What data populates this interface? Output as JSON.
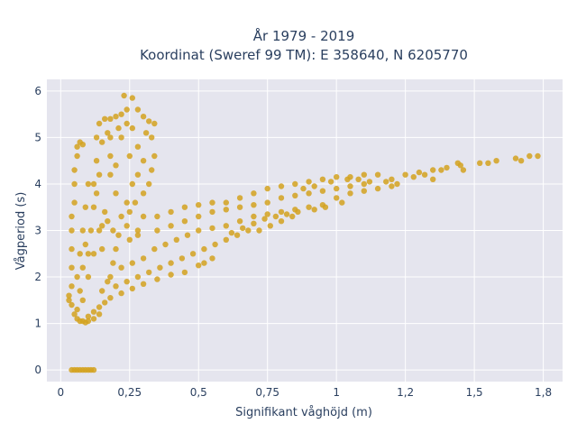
{
  "chart_data": {
    "type": "scatter",
    "title_line1": "År 1979 - 2019",
    "title_line2": "Koordinat (Sweref 99 TM): E 358640, N 6205770",
    "xlabel": "Signifikant våghöjd (m)",
    "ylabel": "Vågperiod (s)",
    "xlim": [
      -0.05,
      1.82
    ],
    "ylim": [
      -0.25,
      6.25
    ],
    "x_ticks": [
      0,
      0.25,
      0.5,
      0.75,
      1,
      1.25,
      1.5,
      1.75
    ],
    "x_tick_labels": [
      "0",
      "0,25",
      "0,5",
      "0,75",
      "1",
      "1,2",
      "1,5",
      "1,8"
    ],
    "y_ticks": [
      0,
      1,
      2,
      3,
      4,
      5,
      6
    ],
    "y_tick_labels": [
      "0",
      "1",
      "2",
      "3",
      "4",
      "5",
      "6"
    ],
    "grid": true,
    "legend": "none",
    "marker_color": "#D4A21F",
    "plot_background": "#E5E5EE",
    "points": [
      [
        0.04,
        0
      ],
      [
        0.05,
        0
      ],
      [
        0.06,
        0
      ],
      [
        0.07,
        0
      ],
      [
        0.08,
        0
      ],
      [
        0.09,
        0
      ],
      [
        0.1,
        0
      ],
      [
        0.11,
        0
      ],
      [
        0.12,
        0
      ],
      [
        0.03,
        1.5
      ],
      [
        0.03,
        1.6
      ],
      [
        0.04,
        1.4
      ],
      [
        0.04,
        1.8
      ],
      [
        0.04,
        2.2
      ],
      [
        0.04,
        2.6
      ],
      [
        0.04,
        3.0
      ],
      [
        0.04,
        3.3
      ],
      [
        0.05,
        1.2
      ],
      [
        0.05,
        3.6
      ],
      [
        0.05,
        4.0
      ],
      [
        0.05,
        4.3
      ],
      [
        0.06,
        4.6
      ],
      [
        0.06,
        4.8
      ],
      [
        0.07,
        4.9
      ],
      [
        0.08,
        4.85
      ],
      [
        0.06,
        1.1
      ],
      [
        0.07,
        1.05
      ],
      [
        0.08,
        1.05
      ],
      [
        0.09,
        1.02
      ],
      [
        0.1,
        1.05
      ],
      [
        0.12,
        1.1
      ],
      [
        0.14,
        1.2
      ],
      [
        0.06,
        2.0
      ],
      [
        0.07,
        2.5
      ],
      [
        0.08,
        3.0
      ],
      [
        0.09,
        3.5
      ],
      [
        0.1,
        4.0
      ],
      [
        0.08,
        1.5
      ],
      [
        0.1,
        2.0
      ],
      [
        0.12,
        2.5
      ],
      [
        0.14,
        3.0
      ],
      [
        0.16,
        3.4
      ],
      [
        0.12,
        4.0
      ],
      [
        0.13,
        4.5
      ],
      [
        0.13,
        5.0
      ],
      [
        0.14,
        5.3
      ],
      [
        0.16,
        5.4
      ],
      [
        0.18,
        5.4
      ],
      [
        0.2,
        5.45
      ],
      [
        0.22,
        5.5
      ],
      [
        0.24,
        5.6
      ],
      [
        0.23,
        5.9
      ],
      [
        0.26,
        5.85
      ],
      [
        0.28,
        5.6
      ],
      [
        0.3,
        5.45
      ],
      [
        0.32,
        5.35
      ],
      [
        0.34,
        5.3
      ],
      [
        0.33,
        5.0
      ],
      [
        0.34,
        4.6
      ],
      [
        0.33,
        4.3
      ],
      [
        0.32,
        4.0
      ],
      [
        0.3,
        3.8
      ],
      [
        0.27,
        3.6
      ],
      [
        0.24,
        3.6
      ],
      [
        0.2,
        3.8
      ],
      [
        0.18,
        4.2
      ],
      [
        0.18,
        4.6
      ],
      [
        0.18,
        5.0
      ],
      [
        0.22,
        5.0
      ],
      [
        0.25,
        4.6
      ],
      [
        0.28,
        4.2
      ],
      [
        0.3,
        4.5
      ],
      [
        0.26,
        5.2
      ],
      [
        0.2,
        4.4
      ],
      [
        0.22,
        3.3
      ],
      [
        0.25,
        3.4
      ],
      [
        0.3,
        3.3
      ],
      [
        0.35,
        3.3
      ],
      [
        0.4,
        3.4
      ],
      [
        0.45,
        3.5
      ],
      [
        0.5,
        3.55
      ],
      [
        0.55,
        3.6
      ],
      [
        0.6,
        3.6
      ],
      [
        0.65,
        3.7
      ],
      [
        0.7,
        3.8
      ],
      [
        0.75,
        3.9
      ],
      [
        0.8,
        3.95
      ],
      [
        0.85,
        4.0
      ],
      [
        0.9,
        4.05
      ],
      [
        0.95,
        4.1
      ],
      [
        1.0,
        4.15
      ],
      [
        1.05,
        4.15
      ],
      [
        1.1,
        4.2
      ],
      [
        1.15,
        4.2
      ],
      [
        1.2,
        4.1
      ],
      [
        1.25,
        4.2
      ],
      [
        1.3,
        4.25
      ],
      [
        1.35,
        4.3
      ],
      [
        1.4,
        4.35
      ],
      [
        1.45,
        4.4
      ],
      [
        1.52,
        4.45
      ],
      [
        1.55,
        4.45
      ],
      [
        1.58,
        4.5
      ],
      [
        1.65,
        4.55
      ],
      [
        1.7,
        4.6
      ],
      [
        1.73,
        4.6
      ],
      [
        1.67,
        4.5
      ],
      [
        1.44,
        4.45
      ],
      [
        1.46,
        4.3
      ],
      [
        1.35,
        4.1
      ],
      [
        0.18,
        2.0
      ],
      [
        0.22,
        2.2
      ],
      [
        0.26,
        2.3
      ],
      [
        0.3,
        2.4
      ],
      [
        0.34,
        2.6
      ],
      [
        0.38,
        2.7
      ],
      [
        0.42,
        2.8
      ],
      [
        0.46,
        2.9
      ],
      [
        0.5,
        3.0
      ],
      [
        0.55,
        3.05
      ],
      [
        0.6,
        3.1
      ],
      [
        0.65,
        3.2
      ],
      [
        0.7,
        3.3
      ],
      [
        0.75,
        3.35
      ],
      [
        0.8,
        3.4
      ],
      [
        0.85,
        3.45
      ],
      [
        0.9,
        3.5
      ],
      [
        0.95,
        3.55
      ],
      [
        1.0,
        3.7
      ],
      [
        1.05,
        3.8
      ],
      [
        1.1,
        3.85
      ],
      [
        1.15,
        3.9
      ],
      [
        1.2,
        3.95
      ],
      [
        0.2,
        1.8
      ],
      [
        0.24,
        1.9
      ],
      [
        0.28,
        2.0
      ],
      [
        0.32,
        2.1
      ],
      [
        0.36,
        2.2
      ],
      [
        0.4,
        2.3
      ],
      [
        0.44,
        2.4
      ],
      [
        0.48,
        2.5
      ],
      [
        0.52,
        2.6
      ],
      [
        0.56,
        2.7
      ],
      [
        0.6,
        2.8
      ],
      [
        0.64,
        2.9
      ],
      [
        0.68,
        3.0
      ],
      [
        0.72,
        3.0
      ],
      [
        0.76,
        3.1
      ],
      [
        0.8,
        3.2
      ],
      [
        0.84,
        3.3
      ],
      [
        0.45,
        2.1
      ],
      [
        0.5,
        2.25
      ],
      [
        0.52,
        2.3
      ],
      [
        0.55,
        2.4
      ],
      [
        0.4,
        2.05
      ],
      [
        0.35,
        1.95
      ],
      [
        0.3,
        1.85
      ],
      [
        0.26,
        1.75
      ],
      [
        0.22,
        1.65
      ],
      [
        0.18,
        1.55
      ],
      [
        0.16,
        1.45
      ],
      [
        0.14,
        1.35
      ],
      [
        0.12,
        1.25
      ],
      [
        0.1,
        1.15
      ],
      [
        0.2,
        2.6
      ],
      [
        0.25,
        2.8
      ],
      [
        0.28,
        2.9
      ],
      [
        0.35,
        3.0
      ],
      [
        0.4,
        3.1
      ],
      [
        0.45,
        3.2
      ],
      [
        0.5,
        3.3
      ],
      [
        0.55,
        3.4
      ],
      [
        0.6,
        3.45
      ],
      [
        0.65,
        3.5
      ],
      [
        0.7,
        3.55
      ],
      [
        0.75,
        3.6
      ],
      [
        0.8,
        3.7
      ],
      [
        0.85,
        3.75
      ],
      [
        0.9,
        3.8
      ],
      [
        0.95,
        3.85
      ],
      [
        1.0,
        3.9
      ],
      [
        1.05,
        3.95
      ],
      [
        1.1,
        4.0
      ],
      [
        1.12,
        4.05
      ],
      [
        0.15,
        2.6
      ],
      [
        0.15,
        3.1
      ],
      [
        0.17,
        3.2
      ],
      [
        0.19,
        3.0
      ],
      [
        0.21,
        2.9
      ],
      [
        0.24,
        3.1
      ],
      [
        0.1,
        2.5
      ],
      [
        0.11,
        3.0
      ],
      [
        0.12,
        3.5
      ],
      [
        0.09,
        2.7
      ],
      [
        0.08,
        2.2
      ],
      [
        0.07,
        1.7
      ],
      [
        0.06,
        1.3
      ],
      [
        0.15,
        1.7
      ],
      [
        0.17,
        1.9
      ],
      [
        0.19,
        2.3
      ],
      [
        0.62,
        2.95
      ],
      [
        0.66,
        3.05
      ],
      [
        0.7,
        3.15
      ],
      [
        0.74,
        3.25
      ],
      [
        0.78,
        3.3
      ],
      [
        0.82,
        3.35
      ],
      [
        0.86,
        3.4
      ],
      [
        0.92,
        3.45
      ],
      [
        0.96,
        3.5
      ],
      [
        1.02,
        3.6
      ],
      [
        0.88,
        3.9
      ],
      [
        0.92,
        3.95
      ],
      [
        0.98,
        4.05
      ],
      [
        1.04,
        4.1
      ],
      [
        1.08,
        4.1
      ],
      [
        1.18,
        4.05
      ],
      [
        1.22,
        4.0
      ],
      [
        1.28,
        4.15
      ],
      [
        1.32,
        4.2
      ],
      [
        1.38,
        4.3
      ],
      [
        0.26,
        4.0
      ],
      [
        0.28,
        4.8
      ],
      [
        0.31,
        5.1
      ],
      [
        0.24,
        5.3
      ],
      [
        0.21,
        5.2
      ],
      [
        0.17,
        5.1
      ],
      [
        0.15,
        4.9
      ],
      [
        0.14,
        4.2
      ],
      [
        0.13,
        3.8
      ],
      [
        0.28,
        3.0
      ]
    ]
  }
}
